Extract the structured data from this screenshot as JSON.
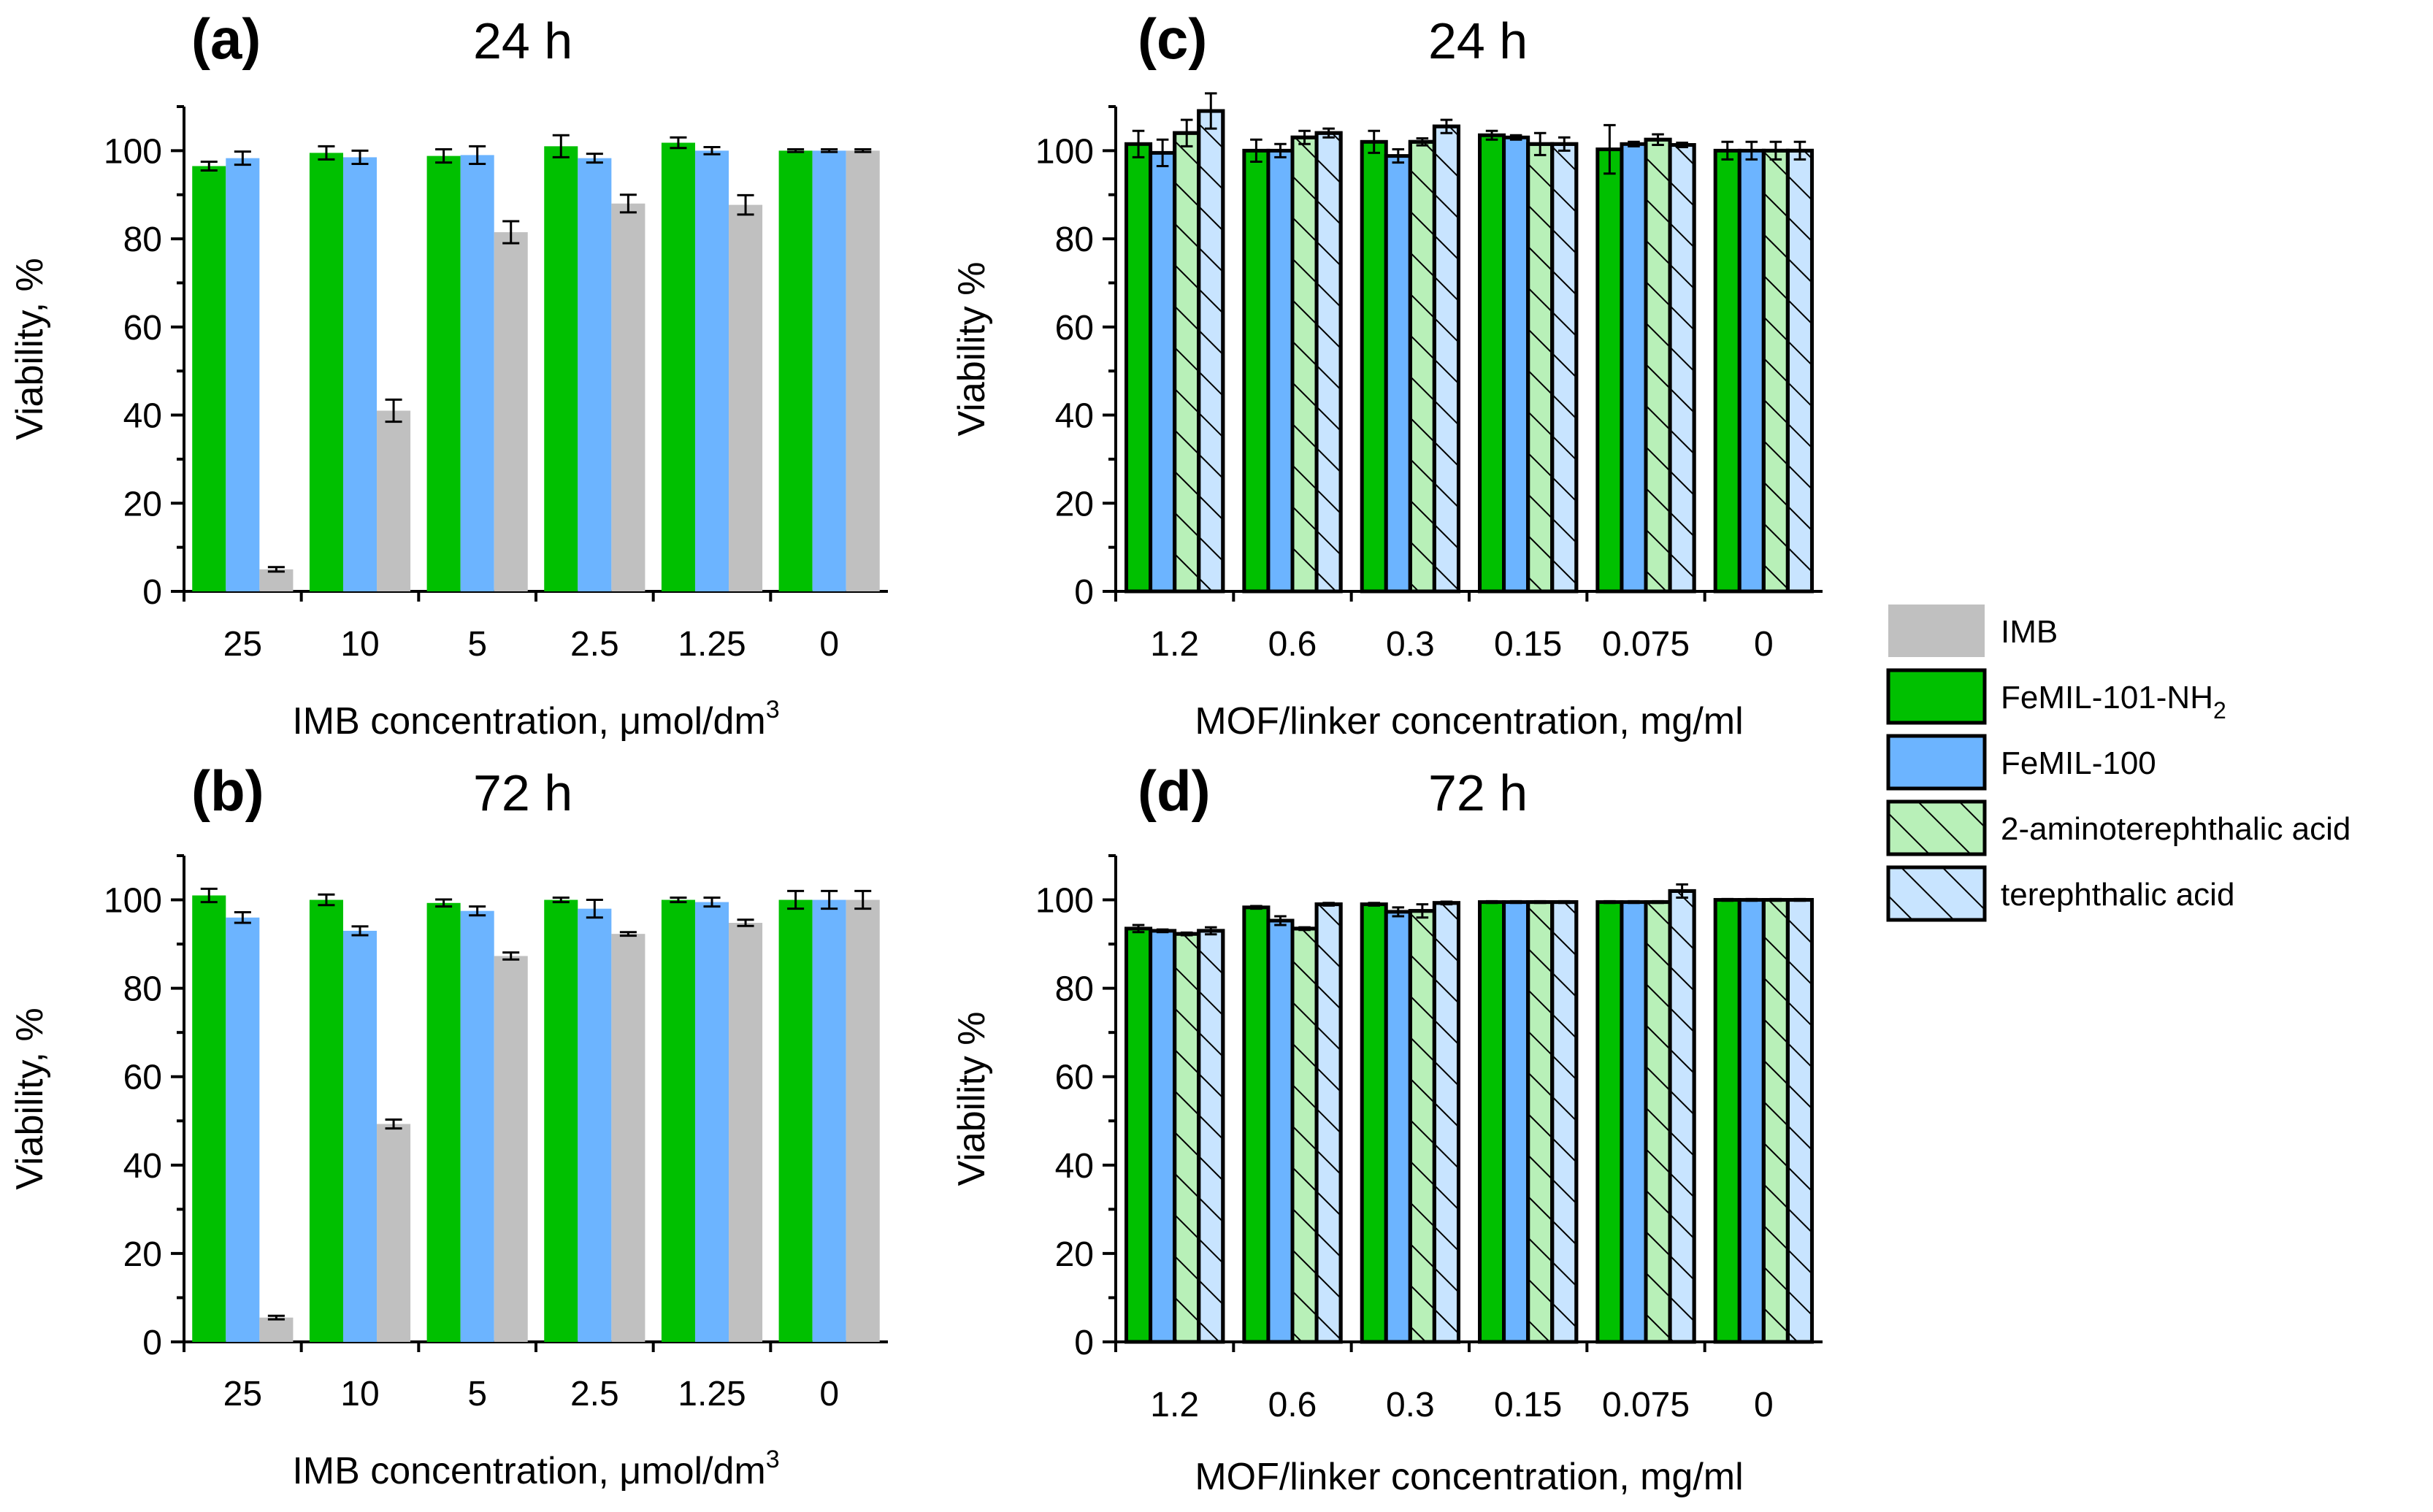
{
  "panels": [
    {
      "id": "a",
      "letter": "(a)",
      "time": "24 h",
      "ylabel": "Viability, %",
      "xlabel": "IMB concentration, μmol/dm",
      "xlabel_sup": "3",
      "style": "plain"
    },
    {
      "id": "b",
      "letter": "(b)",
      "time": "72 h",
      "ylabel": "Viability, %",
      "xlabel": "IMB concentration, μmol/dm",
      "xlabel_sup": "3",
      "style": "plain"
    },
    {
      "id": "c",
      "letter": "(c)",
      "time": "24 h",
      "ylabel": "Viability %",
      "xlabel": "MOF/linker concentration, mg/ml",
      "xlabel_sup": "",
      "style": "outlined"
    },
    {
      "id": "d",
      "letter": "(d)",
      "time": "72 h",
      "ylabel": "Viability %",
      "xlabel": "MOF/linker concentration, mg/ml",
      "xlabel_sup": "",
      "style": "outlined"
    }
  ],
  "legend": [
    {
      "name": "IMB",
      "sub": "",
      "color": "#c0c0c0",
      "hatch": false,
      "outlined": false
    },
    {
      "name": "FeMIL-101-NH",
      "sub": "2",
      "color": "#00c000",
      "hatch": false,
      "outlined": true
    },
    {
      "name": "FeMIL-100",
      "sub": "",
      "color": "#6cb4ff",
      "hatch": false,
      "outlined": true
    },
    {
      "name": "2-aminoterephthalic acid",
      "sub": "",
      "color": "#b8f0b8",
      "hatch": true,
      "outlined": true
    },
    {
      "name": "terephthalic acid",
      "sub": "",
      "color": "#c8e4ff",
      "hatch": true,
      "outlined": true
    }
  ],
  "colors": {
    "green": "#00c000",
    "blue": "#6cb4ff",
    "gray": "#c0c0c0",
    "light_green": "#b8f0b8",
    "light_blue": "#c8e4ff"
  },
  "chart_data": [
    {
      "panel": "a",
      "type": "bar",
      "title": "24 h",
      "xlabel": "IMB concentration, μmol/dm3",
      "ylabel": "Viability, %",
      "ylim": [
        0,
        110
      ],
      "yticks": [
        0,
        20,
        40,
        60,
        80,
        100
      ],
      "categories": [
        "25",
        "10",
        "5",
        "2.5",
        "1.25",
        "0"
      ],
      "series": [
        {
          "name": "FeMIL-101-NH2",
          "color": "#00c000",
          "values": [
            96.5,
            99.5,
            98.8,
            101.0,
            101.8,
            100.0
          ],
          "errors": [
            1.0,
            1.5,
            1.5,
            2.5,
            1.2,
            0.3
          ]
        },
        {
          "name": "FeMIL-100",
          "color": "#6cb4ff",
          "values": [
            98.3,
            98.5,
            99.0,
            98.3,
            100.0,
            100.0
          ],
          "errors": [
            1.5,
            1.5,
            2.0,
            1.0,
            0.8,
            0.3
          ]
        },
        {
          "name": "IMB",
          "color": "#c0c0c0",
          "values": [
            5.0,
            41.0,
            81.5,
            88.0,
            87.7,
            100.0
          ],
          "errors": [
            0.5,
            2.5,
            2.5,
            2.0,
            2.2,
            0.3
          ]
        }
      ]
    },
    {
      "panel": "b",
      "type": "bar",
      "title": "72 h",
      "xlabel": "IMB concentration, μmol/dm3",
      "ylabel": "Viability, %",
      "ylim": [
        0,
        110
      ],
      "yticks": [
        0,
        20,
        40,
        60,
        80,
        100
      ],
      "categories": [
        "25",
        "10",
        "5",
        "2.5",
        "1.25",
        "0"
      ],
      "series": [
        {
          "name": "FeMIL-101-NH2",
          "color": "#00c000",
          "values": [
            101.0,
            100.0,
            99.3,
            100.0,
            100.0,
            100.0
          ],
          "errors": [
            1.5,
            1.2,
            0.8,
            0.5,
            0.5,
            2.0
          ]
        },
        {
          "name": "FeMIL-100",
          "color": "#6cb4ff",
          "values": [
            96.0,
            93.0,
            97.5,
            98.0,
            99.5,
            100.0
          ],
          "errors": [
            1.2,
            1.0,
            1.0,
            2.0,
            1.0,
            2.0
          ]
        },
        {
          "name": "IMB",
          "color": "#c0c0c0",
          "values": [
            5.5,
            49.3,
            87.3,
            92.3,
            94.8,
            100.0
          ],
          "errors": [
            0.4,
            1.0,
            0.8,
            0.4,
            0.7,
            2.0
          ]
        }
      ]
    },
    {
      "panel": "c",
      "type": "bar",
      "title": "24 h",
      "xlabel": "MOF/linker concentration, mg/ml",
      "ylabel": "Viability %",
      "ylim": [
        0,
        110
      ],
      "yticks": [
        0,
        20,
        40,
        60,
        80,
        100
      ],
      "categories": [
        "1.2",
        "0.6",
        "0.3",
        "0.15",
        "0.075",
        "0"
      ],
      "series": [
        {
          "name": "FeMIL-101-NH2",
          "color": "#00c000",
          "values": [
            101.5,
            100.0,
            102.0,
            103.5,
            100.3,
            100.0
          ],
          "errors": [
            3.0,
            2.5,
            2.5,
            1.0,
            5.5,
            2.0
          ]
        },
        {
          "name": "FeMIL-100",
          "color": "#6cb4ff",
          "values": [
            99.5,
            100.0,
            98.8,
            103.0,
            101.5,
            100.0
          ],
          "errors": [
            3.0,
            1.5,
            1.5,
            0.5,
            0.5,
            2.0
          ]
        },
        {
          "name": "2-aminoterephthalic acid",
          "color": "#b8f0b8",
          "values": [
            104.0,
            103.0,
            102.0,
            101.5,
            102.5,
            100.0
          ],
          "errors": [
            3.0,
            1.5,
            0.8,
            2.5,
            1.2,
            2.0
          ]
        },
        {
          "name": "terephthalic acid",
          "color": "#c8e4ff",
          "values": [
            109.0,
            104.0,
            105.5,
            101.5,
            101.3,
            100.0
          ],
          "errors": [
            4.0,
            1.0,
            1.5,
            1.5,
            0.5,
            2.0
          ]
        }
      ]
    },
    {
      "panel": "d",
      "type": "bar",
      "title": "72 h",
      "xlabel": "MOF/linker concentration, mg/ml",
      "ylabel": "Viability %",
      "ylim": [
        0,
        110
      ],
      "yticks": [
        0,
        20,
        40,
        60,
        80,
        100
      ],
      "categories": [
        "1.2",
        "0.6",
        "0.3",
        "0.15",
        "0.075",
        "0"
      ],
      "series": [
        {
          "name": "FeMIL-101-NH2",
          "color": "#00c000",
          "values": [
            93.5,
            98.3,
            99.0,
            99.5,
            99.5,
            100.0
          ],
          "errors": [
            0.8,
            0.3,
            0.3,
            0.2,
            0.2,
            0.2
          ]
        },
        {
          "name": "FeMIL-100",
          "color": "#6cb4ff",
          "values": [
            93.0,
            95.3,
            97.3,
            99.5,
            99.5,
            100.0
          ],
          "errors": [
            0.3,
            1.0,
            1.0,
            0.2,
            0.2,
            0.2
          ]
        },
        {
          "name": "2-aminoterephthalic acid",
          "color": "#b8f0b8",
          "values": [
            92.3,
            93.5,
            97.5,
            99.5,
            99.5,
            100.0
          ],
          "errors": [
            0.3,
            0.3,
            1.5,
            0.2,
            0.2,
            0.2
          ]
        },
        {
          "name": "terephthalic acid",
          "color": "#c8e4ff",
          "values": [
            93.0,
            99.0,
            99.3,
            99.5,
            102.0,
            100.0
          ],
          "errors": [
            0.8,
            0.3,
            0.3,
            0.2,
            1.5,
            0.2
          ]
        }
      ]
    }
  ]
}
